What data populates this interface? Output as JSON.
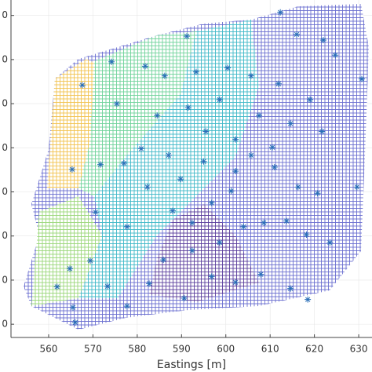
{
  "chart_data": {
    "type": "scatter",
    "xlabel": "Eastings [m]",
    "xlim": [
      551.5,
      633
    ],
    "xticks": [
      560,
      570,
      580,
      590,
      600,
      610,
      620,
      630
    ],
    "ylim": [
      -0.3,
      7.35
    ],
    "yticks": [
      {
        "value": 0,
        "label": "0"
      },
      {
        "value": 1,
        "label": "0"
      },
      {
        "value": 2,
        "label": "0"
      },
      {
        "value": 3,
        "label": "0"
      },
      {
        "value": 4,
        "label": "0"
      },
      {
        "value": 5,
        "label": "0"
      },
      {
        "value": 6,
        "label": "0"
      },
      {
        "value": 7,
        "label": "0"
      }
    ],
    "grid": true,
    "color": "#2a6fb8",
    "x": [
      567.6,
      574.2,
      591.2,
      612.3,
      616.0,
      622.0,
      624.7,
      630.7,
      581.8,
      586.2,
      593.3,
      600.4,
      605.7,
      611.9,
      619.0,
      575.4,
      584.5,
      591.5,
      598.6,
      607.5,
      614.6,
      621.7,
      565.3,
      571.7,
      577.0,
      580.9,
      587.1,
      595.0,
      602.2,
      605.7,
      611.0,
      616.3,
      620.7,
      629.6,
      570.6,
      577.7,
      582.3,
      588.0,
      592.4,
      596.8,
      601.2,
      608.6,
      613.7,
      618.2,
      623.5,
      569.4,
      564.8,
      565.5,
      561.9,
      566.0,
      573.3,
      577.7,
      582.7,
      590.6,
      596.8,
      602.2,
      607.9,
      614.6,
      618.5,
      585.9,
      592.4,
      598.6,
      604.0,
      589.8,
      595.5,
      602.2,
      610.5
    ],
    "y": [
      5.42,
      5.95,
      6.53,
      7.07,
      6.57,
      6.44,
      6.1,
      5.56,
      5.85,
      5.63,
      5.72,
      5.81,
      5.63,
      5.45,
      5.09,
      5.0,
      4.73,
      4.91,
      5.09,
      4.73,
      4.55,
      4.37,
      3.51,
      3.62,
      3.65,
      3.98,
      3.83,
      3.69,
      3.47,
      3.83,
      3.56,
      3.11,
      2.97,
      3.11,
      2.54,
      2.21,
      3.11,
      2.57,
      2.3,
      2.75,
      3.02,
      2.3,
      2.34,
      2.03,
      1.85,
      1.44,
      1.26,
      0.38,
      0.85,
      0.04,
      0.86,
      0.41,
      0.92,
      0.59,
      1.08,
      0.95,
      1.13,
      0.81,
      0.56,
      1.46,
      1.67,
      1.85,
      2.21,
      3.29,
      4.37,
      4.19,
      4.01
    ]
  }
}
